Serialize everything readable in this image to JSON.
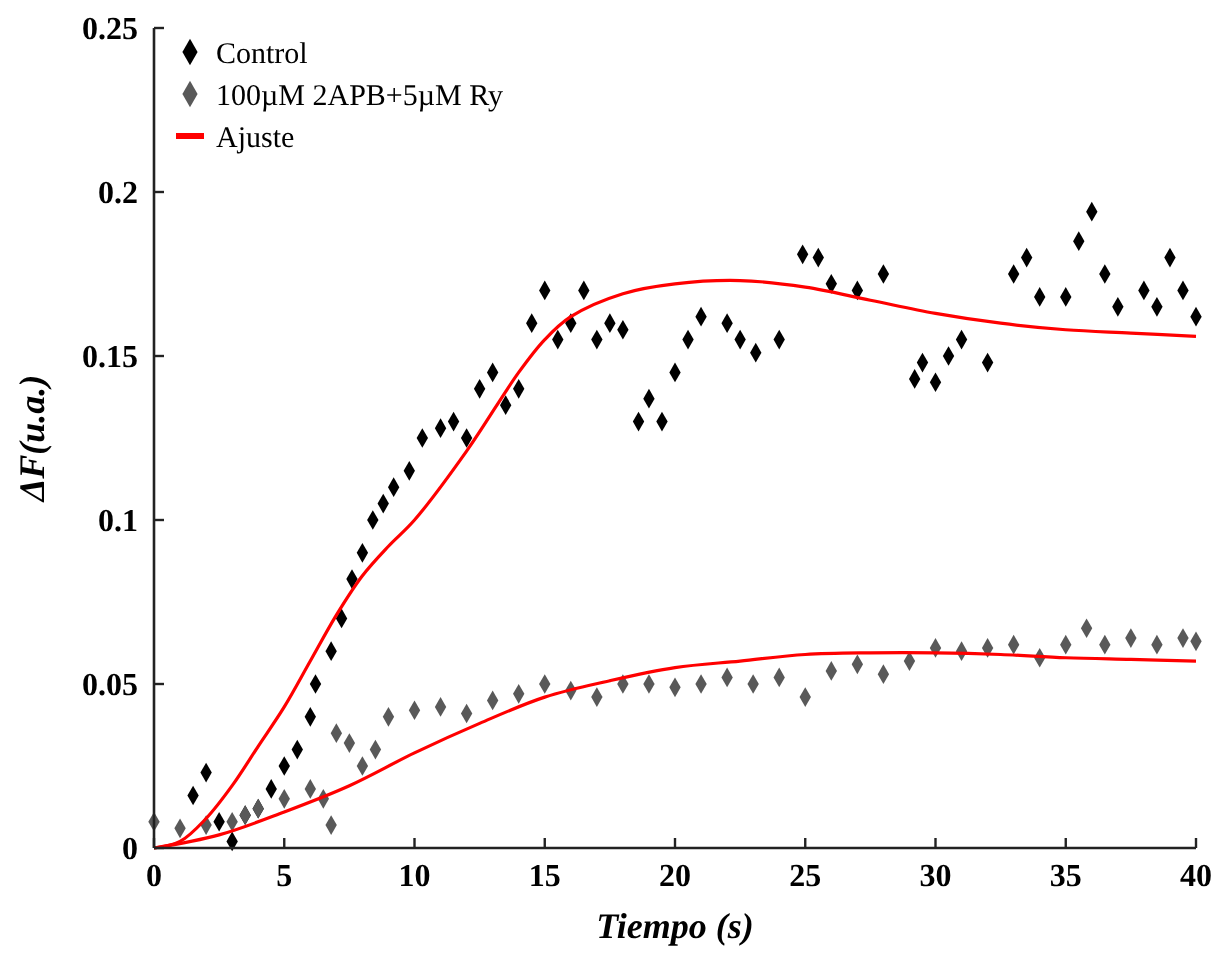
{
  "chart_data": {
    "type": "scatter",
    "xlabel": "Tiempo (s)",
    "ylabel": "ΔF(u.a.)",
    "xlim": [
      0,
      40
    ],
    "xticks": [
      0,
      5,
      10,
      15,
      20,
      25,
      30,
      35,
      40
    ],
    "ylim": [
      0,
      0.25
    ],
    "yticks": [
      0,
      0.05,
      0.1,
      0.15,
      0.2,
      0.25
    ],
    "grid": false,
    "legend": "top left",
    "marker": "diamond",
    "series": [
      {
        "name": "Control",
        "color": "#000000",
        "x": [
          1.5,
          2,
          2.5,
          3,
          3.5,
          4,
          4.5,
          5,
          5.5,
          6,
          6.2,
          6.8,
          7.2,
          7.6,
          8,
          8.4,
          8.8,
          9.2,
          9.8,
          10.3,
          11,
          11.5,
          12,
          12.5,
          13,
          13.5,
          14,
          14.5,
          15,
          15.5,
          16,
          16.5,
          17,
          17.5,
          18,
          18.6,
          19,
          19.5,
          20,
          20.5,
          21,
          22,
          22.5,
          23.1,
          24,
          24.9,
          25.5,
          26,
          27,
          28,
          29.2,
          29.5,
          30,
          30.5,
          31,
          32,
          33,
          33.5,
          34,
          35,
          35.5,
          36,
          36.5,
          37,
          38,
          38.5,
          39,
          39.5,
          40
        ],
        "values": [
          0.016,
          0.023,
          0.008,
          0.002,
          0.01,
          0.012,
          0.018,
          0.025,
          0.03,
          0.04,
          0.05,
          0.06,
          0.07,
          0.082,
          0.09,
          0.1,
          0.105,
          0.11,
          0.115,
          0.125,
          0.128,
          0.13,
          0.125,
          0.14,
          0.145,
          0.135,
          0.14,
          0.16,
          0.17,
          0.155,
          0.16,
          0.17,
          0.155,
          0.16,
          0.158,
          0.13,
          0.137,
          0.13,
          0.145,
          0.155,
          0.162,
          0.16,
          0.155,
          0.151,
          0.155,
          0.181,
          0.18,
          0.172,
          0.17,
          0.175,
          0.143,
          0.148,
          0.142,
          0.15,
          0.155,
          0.148,
          0.175,
          0.18,
          0.168,
          0.168,
          0.185,
          0.194,
          0.175,
          0.165,
          0.17,
          0.165,
          0.18,
          0.17,
          0.162
        ]
      },
      {
        "name": "100µM  2APB+5µM  Ry",
        "color": "#595959",
        "x": [
          0,
          1,
          2,
          3,
          3.5,
          4,
          5,
          6,
          6.5,
          6.8,
          7,
          7.5,
          8,
          8.5,
          9,
          10,
          11,
          12,
          13,
          14,
          15,
          16,
          17,
          18,
          19,
          20,
          21,
          22,
          23,
          24,
          25,
          26,
          27,
          28,
          29,
          30,
          31,
          32,
          33,
          34,
          35,
          35.8,
          36.5,
          37.5,
          38.5,
          39.5,
          40
        ],
        "values": [
          0.008,
          0.006,
          0.007,
          0.008,
          0.01,
          0.012,
          0.015,
          0.018,
          0.015,
          0.007,
          0.035,
          0.032,
          0.025,
          0.03,
          0.04,
          0.042,
          0.043,
          0.041,
          0.045,
          0.047,
          0.05,
          0.048,
          0.046,
          0.05,
          0.05,
          0.049,
          0.05,
          0.052,
          0.05,
          0.052,
          0.046,
          0.054,
          0.056,
          0.053,
          0.057,
          0.061,
          0.06,
          0.061,
          0.062,
          0.058,
          0.062,
          0.067,
          0.062,
          0.064,
          0.062,
          0.064,
          0.063
        ]
      },
      {
        "name": "Ajuste",
        "color": "#ff0000",
        "type": "line",
        "marker": "none",
        "x": [
          0,
          1,
          2,
          3,
          4,
          5,
          6,
          7,
          8,
          9,
          10,
          12,
          14,
          15,
          16,
          18,
          20,
          22.5,
          25,
          27.5,
          30,
          32.5,
          35,
          37.5,
          40
        ],
        "values": [
          0,
          0.002,
          0.009,
          0.019,
          0.031,
          0.043,
          0.057,
          0.071,
          0.083,
          0.092,
          0.1,
          0.121,
          0.145,
          0.155,
          0.162,
          0.169,
          0.172,
          0.173,
          0.171,
          0.167,
          0.163,
          0.16,
          0.158,
          0.157,
          0.156
        ]
      },
      {
        "color": "#ff0000",
        "type": "line",
        "marker": "none",
        "x": [
          0,
          2.5,
          5,
          7.5,
          10,
          12.5,
          15,
          17.5,
          20,
          22.5,
          25,
          27.5,
          30,
          32.5,
          35,
          37.5,
          40
        ],
        "values": [
          0,
          0.004,
          0.011,
          0.019,
          0.029,
          0.038,
          0.046,
          0.051,
          0.055,
          0.057,
          0.059,
          0.0595,
          0.0595,
          0.059,
          0.058,
          0.0575,
          0.057
        ]
      }
    ]
  }
}
